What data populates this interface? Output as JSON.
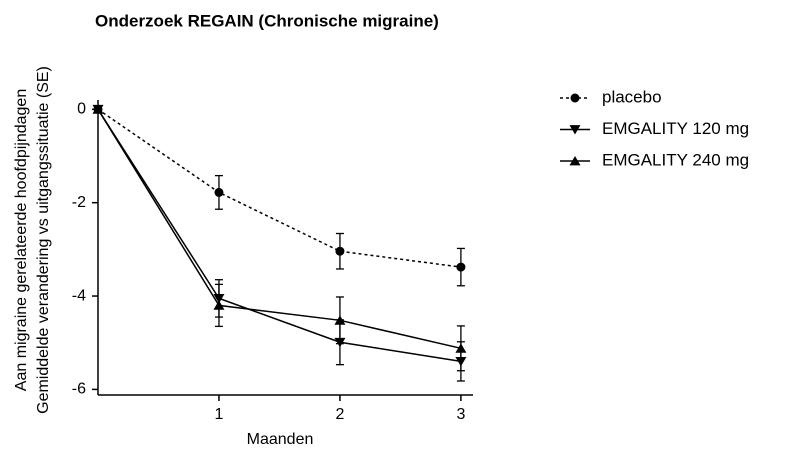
{
  "chart_data": {
    "type": "line",
    "title": "Onderzoek REGAIN (Chronische migraine)",
    "xlabel": "Maanden",
    "ylabel": [
      "Aan migraine gerelateerde hoofdpijndagen",
      "Gemiddelde verandering vs uitgangssituatie (SE)"
    ],
    "x": [
      0,
      1,
      2,
      3
    ],
    "series": [
      {
        "name": "placebo",
        "color": "#000000",
        "marker": "circle",
        "dash": true,
        "values": [
          0,
          -1.78,
          -3.04,
          -3.38
        ],
        "errors": [
          0,
          0.36,
          0.38,
          0.4
        ]
      },
      {
        "name": "EMGALITY 120 mg",
        "color": "#000000",
        "marker": "triangle-down",
        "dash": false,
        "values": [
          0,
          -4.05,
          -4.99,
          -5.4
        ],
        "errors": [
          0,
          0.4,
          0.48,
          0.42
        ]
      },
      {
        "name": "EMGALITY 240 mg",
        "color": "#000000",
        "marker": "triangle-up",
        "dash": false,
        "values": [
          0,
          -4.2,
          -4.52,
          -5.12
        ],
        "errors": [
          0,
          0.45,
          0.5,
          0.48
        ]
      }
    ],
    "xlim": [
      0,
      3.1
    ],
    "xticks": [
      1,
      2,
      3
    ],
    "ylim": [
      -6.12,
      0.2
    ],
    "yticks": [
      0,
      -2,
      -4,
      -6
    ],
    "legend": "upper right",
    "grid": false
  }
}
